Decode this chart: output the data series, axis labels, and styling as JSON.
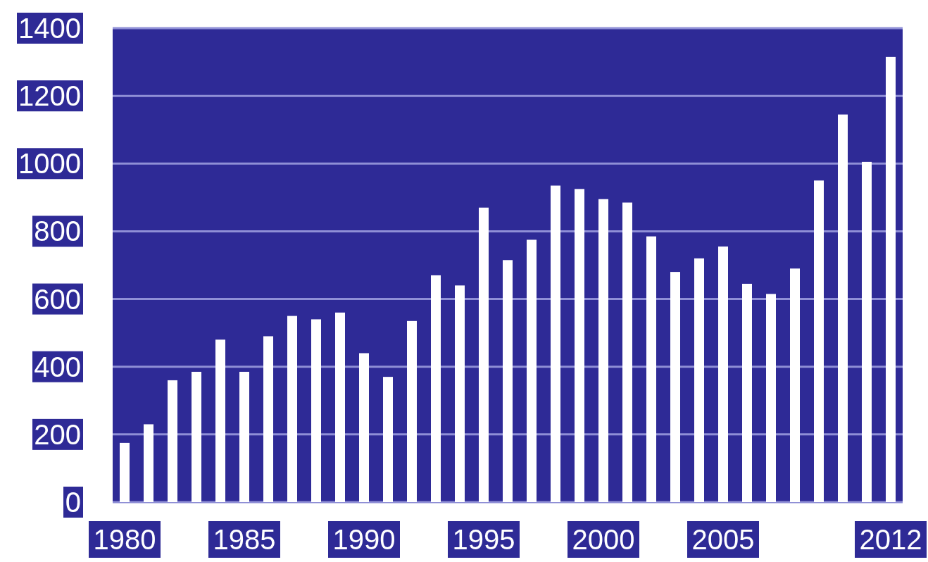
{
  "chart_data": {
    "type": "bar",
    "categories": [
      "1980",
      null,
      null,
      null,
      null,
      "1985",
      null,
      null,
      null,
      null,
      "1990",
      null,
      null,
      null,
      null,
      "1995",
      null,
      null,
      null,
      null,
      "2000",
      null,
      null,
      null,
      null,
      "2005",
      null,
      null,
      null,
      null,
      null,
      null,
      "2012"
    ],
    "values": [
      175,
      230,
      360,
      385,
      480,
      385,
      490,
      550,
      540,
      560,
      440,
      370,
      535,
      670,
      640,
      870,
      715,
      775,
      935,
      925,
      895,
      885,
      785,
      680,
      720,
      755,
      645,
      615,
      690,
      950,
      1145,
      1005,
      1315
    ],
    "color": "#ffffff",
    "ylim": [
      0,
      1400
    ],
    "yticks": [
      0,
      200,
      400,
      600,
      800,
      1000,
      1200,
      1400
    ],
    "grid": "y"
  }
}
